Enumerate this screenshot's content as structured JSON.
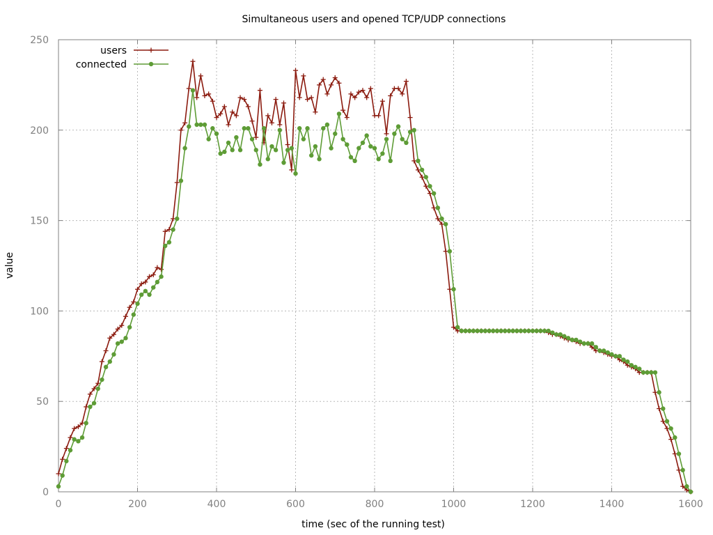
{
  "chart_data": {
    "type": "line",
    "title": "Simultaneous users and opened TCP/UDP connections",
    "xlabel": "time (sec of the running test)",
    "ylabel": "value",
    "xlim": [
      0,
      1600
    ],
    "ylim": [
      0,
      250
    ],
    "x_ticks": [
      "0",
      "200",
      "400",
      "600",
      "800",
      "1000",
      "1200",
      "1400",
      "1600"
    ],
    "y_ticks": [
      "0",
      "50",
      "100",
      "150",
      "200",
      "250"
    ],
    "grid": true,
    "legend_position": "top-left",
    "series": [
      {
        "name": "users",
        "color": "#8b1a0e",
        "marker": "plus",
        "points": [
          [
            0,
            10
          ],
          [
            10,
            18
          ],
          [
            20,
            24
          ],
          [
            30,
            30
          ],
          [
            40,
            35
          ],
          [
            50,
            36
          ],
          [
            60,
            38
          ],
          [
            70,
            47
          ],
          [
            80,
            54
          ],
          [
            90,
            57
          ],
          [
            100,
            60
          ],
          [
            110,
            72
          ],
          [
            120,
            78
          ],
          [
            130,
            85
          ],
          [
            140,
            87
          ],
          [
            150,
            90
          ],
          [
            160,
            92
          ],
          [
            170,
            97
          ],
          [
            180,
            102
          ],
          [
            190,
            105
          ],
          [
            200,
            112
          ],
          [
            210,
            115
          ],
          [
            220,
            116
          ],
          [
            230,
            119
          ],
          [
            240,
            120
          ],
          [
            250,
            124
          ],
          [
            260,
            123
          ],
          [
            270,
            144
          ],
          [
            280,
            145
          ],
          [
            290,
            151
          ],
          [
            300,
            171
          ],
          [
            310,
            200
          ],
          [
            320,
            204
          ],
          [
            330,
            223
          ],
          [
            340,
            238
          ],
          [
            350,
            218
          ],
          [
            360,
            230
          ],
          [
            370,
            219
          ],
          [
            380,
            220
          ],
          [
            390,
            216
          ],
          [
            400,
            207
          ],
          [
            410,
            209
          ],
          [
            420,
            213
          ],
          [
            430,
            203
          ],
          [
            440,
            210
          ],
          [
            450,
            208
          ],
          [
            460,
            218
          ],
          [
            470,
            217
          ],
          [
            480,
            213
          ],
          [
            490,
            205
          ],
          [
            500,
            196
          ],
          [
            510,
            222
          ],
          [
            520,
            193
          ],
          [
            530,
            208
          ],
          [
            540,
            204
          ],
          [
            550,
            217
          ],
          [
            560,
            203
          ],
          [
            570,
            215
          ],
          [
            580,
            192
          ],
          [
            590,
            178
          ],
          [
            600,
            233
          ],
          [
            610,
            218
          ],
          [
            620,
            230
          ],
          [
            630,
            217
          ],
          [
            640,
            218
          ],
          [
            650,
            210
          ],
          [
            660,
            225
          ],
          [
            670,
            228
          ],
          [
            680,
            220
          ],
          [
            690,
            225
          ],
          [
            700,
            229
          ],
          [
            710,
            226
          ],
          [
            720,
            211
          ],
          [
            730,
            207
          ],
          [
            740,
            220
          ],
          [
            750,
            218
          ],
          [
            760,
            221
          ],
          [
            770,
            222
          ],
          [
            780,
            218
          ],
          [
            790,
            223
          ],
          [
            800,
            208
          ],
          [
            810,
            208
          ],
          [
            820,
            216
          ],
          [
            830,
            198
          ],
          [
            840,
            219
          ],
          [
            850,
            223
          ],
          [
            860,
            223
          ],
          [
            870,
            220
          ],
          [
            880,
            227
          ],
          [
            890,
            207
          ],
          [
            900,
            183
          ],
          [
            910,
            178
          ],
          [
            920,
            174
          ],
          [
            930,
            169
          ],
          [
            940,
            165
          ],
          [
            950,
            157
          ],
          [
            960,
            151
          ],
          [
            970,
            148
          ],
          [
            980,
            133
          ],
          [
            990,
            112
          ],
          [
            1000,
            91
          ],
          [
            1010,
            89
          ],
          [
            1020,
            89
          ],
          [
            1030,
            89
          ],
          [
            1040,
            89
          ],
          [
            1050,
            89
          ],
          [
            1060,
            89
          ],
          [
            1070,
            89
          ],
          [
            1080,
            89
          ],
          [
            1090,
            89
          ],
          [
            1100,
            89
          ],
          [
            1110,
            89
          ],
          [
            1120,
            89
          ],
          [
            1130,
            89
          ],
          [
            1140,
            89
          ],
          [
            1150,
            89
          ],
          [
            1160,
            89
          ],
          [
            1170,
            89
          ],
          [
            1180,
            89
          ],
          [
            1190,
            89
          ],
          [
            1200,
            89
          ],
          [
            1210,
            89
          ],
          [
            1220,
            89
          ],
          [
            1230,
            89
          ],
          [
            1240,
            88
          ],
          [
            1250,
            87
          ],
          [
            1260,
            87
          ],
          [
            1270,
            86
          ],
          [
            1280,
            85
          ],
          [
            1290,
            84
          ],
          [
            1300,
            84
          ],
          [
            1310,
            83
          ],
          [
            1320,
            82
          ],
          [
            1330,
            82
          ],
          [
            1340,
            82
          ],
          [
            1350,
            80
          ],
          [
            1360,
            78
          ],
          [
            1370,
            78
          ],
          [
            1380,
            77
          ],
          [
            1390,
            76
          ],
          [
            1400,
            75
          ],
          [
            1410,
            75
          ],
          [
            1420,
            73
          ],
          [
            1430,
            72
          ],
          [
            1440,
            70
          ],
          [
            1450,
            69
          ],
          [
            1460,
            68
          ],
          [
            1470,
            66
          ],
          [
            1480,
            66
          ],
          [
            1490,
            66
          ],
          [
            1500,
            66
          ],
          [
            1510,
            55
          ],
          [
            1520,
            46
          ],
          [
            1530,
            39
          ],
          [
            1540,
            35
          ],
          [
            1550,
            29
          ],
          [
            1560,
            21
          ],
          [
            1570,
            12
          ],
          [
            1580,
            3
          ],
          [
            1590,
            1
          ],
          [
            1600,
            0
          ]
        ]
      },
      {
        "name": "connected",
        "color": "#5e9c36",
        "marker": "dot",
        "points": [
          [
            0,
            3
          ],
          [
            10,
            9
          ],
          [
            20,
            17
          ],
          [
            30,
            23
          ],
          [
            40,
            29
          ],
          [
            50,
            28
          ],
          [
            60,
            30
          ],
          [
            70,
            38
          ],
          [
            80,
            47
          ],
          [
            90,
            49
          ],
          [
            100,
            57
          ],
          [
            110,
            62
          ],
          [
            120,
            69
          ],
          [
            130,
            72
          ],
          [
            140,
            76
          ],
          [
            150,
            82
          ],
          [
            160,
            83
          ],
          [
            170,
            85
          ],
          [
            180,
            91
          ],
          [
            190,
            98
          ],
          [
            200,
            104
          ],
          [
            210,
            109
          ],
          [
            220,
            111
          ],
          [
            230,
            109
          ],
          [
            240,
            113
          ],
          [
            250,
            116
          ],
          [
            260,
            119
          ],
          [
            270,
            136
          ],
          [
            280,
            138
          ],
          [
            290,
            145
          ],
          [
            300,
            151
          ],
          [
            310,
            172
          ],
          [
            320,
            190
          ],
          [
            330,
            202
          ],
          [
            340,
            222
          ],
          [
            350,
            203
          ],
          [
            360,
            203
          ],
          [
            370,
            203
          ],
          [
            380,
            195
          ],
          [
            390,
            201
          ],
          [
            400,
            198
          ],
          [
            410,
            187
          ],
          [
            420,
            188
          ],
          [
            430,
            193
          ],
          [
            440,
            189
          ],
          [
            450,
            196
          ],
          [
            460,
            189
          ],
          [
            470,
            201
          ],
          [
            480,
            201
          ],
          [
            490,
            195
          ],
          [
            500,
            189
          ],
          [
            510,
            181
          ],
          [
            520,
            201
          ],
          [
            530,
            184
          ],
          [
            540,
            191
          ],
          [
            550,
            189
          ],
          [
            560,
            200
          ],
          [
            570,
            182
          ],
          [
            580,
            189
          ],
          [
            590,
            190
          ],
          [
            600,
            176
          ],
          [
            610,
            201
          ],
          [
            620,
            195
          ],
          [
            630,
            201
          ],
          [
            640,
            186
          ],
          [
            650,
            191
          ],
          [
            660,
            184
          ],
          [
            670,
            201
          ],
          [
            680,
            203
          ],
          [
            690,
            190
          ],
          [
            700,
            198
          ],
          [
            710,
            209
          ],
          [
            720,
            195
          ],
          [
            730,
            192
          ],
          [
            740,
            185
          ],
          [
            750,
            183
          ],
          [
            760,
            190
          ],
          [
            770,
            193
          ],
          [
            780,
            197
          ],
          [
            790,
            191
          ],
          [
            800,
            190
          ],
          [
            810,
            184
          ],
          [
            820,
            187
          ],
          [
            830,
            195
          ],
          [
            840,
            183
          ],
          [
            850,
            198
          ],
          [
            860,
            202
          ],
          [
            870,
            195
          ],
          [
            880,
            193
          ],
          [
            890,
            199
          ],
          [
            900,
            200
          ],
          [
            910,
            183
          ],
          [
            920,
            178
          ],
          [
            930,
            174
          ],
          [
            940,
            169
          ],
          [
            950,
            165
          ],
          [
            960,
            157
          ],
          [
            970,
            151
          ],
          [
            980,
            148
          ],
          [
            990,
            133
          ],
          [
            1000,
            112
          ],
          [
            1010,
            91
          ],
          [
            1020,
            89
          ],
          [
            1030,
            89
          ],
          [
            1040,
            89
          ],
          [
            1050,
            89
          ],
          [
            1060,
            89
          ],
          [
            1070,
            89
          ],
          [
            1080,
            89
          ],
          [
            1090,
            89
          ],
          [
            1100,
            89
          ],
          [
            1110,
            89
          ],
          [
            1120,
            89
          ],
          [
            1130,
            89
          ],
          [
            1140,
            89
          ],
          [
            1150,
            89
          ],
          [
            1160,
            89
          ],
          [
            1170,
            89
          ],
          [
            1180,
            89
          ],
          [
            1190,
            89
          ],
          [
            1200,
            89
          ],
          [
            1210,
            89
          ],
          [
            1220,
            89
          ],
          [
            1230,
            89
          ],
          [
            1240,
            89
          ],
          [
            1250,
            88
          ],
          [
            1260,
            87
          ],
          [
            1270,
            87
          ],
          [
            1280,
            86
          ],
          [
            1290,
            85
          ],
          [
            1300,
            84
          ],
          [
            1310,
            84
          ],
          [
            1320,
            83
          ],
          [
            1330,
            82
          ],
          [
            1340,
            82
          ],
          [
            1350,
            82
          ],
          [
            1360,
            80
          ],
          [
            1370,
            78
          ],
          [
            1380,
            78
          ],
          [
            1390,
            77
          ],
          [
            1400,
            76
          ],
          [
            1410,
            75
          ],
          [
            1420,
            75
          ],
          [
            1430,
            73
          ],
          [
            1440,
            72
          ],
          [
            1450,
            70
          ],
          [
            1460,
            69
          ],
          [
            1470,
            68
          ],
          [
            1480,
            66
          ],
          [
            1490,
            66
          ],
          [
            1500,
            66
          ],
          [
            1510,
            66
          ],
          [
            1520,
            55
          ],
          [
            1530,
            46
          ],
          [
            1540,
            39
          ],
          [
            1550,
            35
          ],
          [
            1560,
            30
          ],
          [
            1570,
            21
          ],
          [
            1580,
            12
          ],
          [
            1590,
            3
          ],
          [
            1600,
            0
          ]
        ]
      }
    ]
  }
}
